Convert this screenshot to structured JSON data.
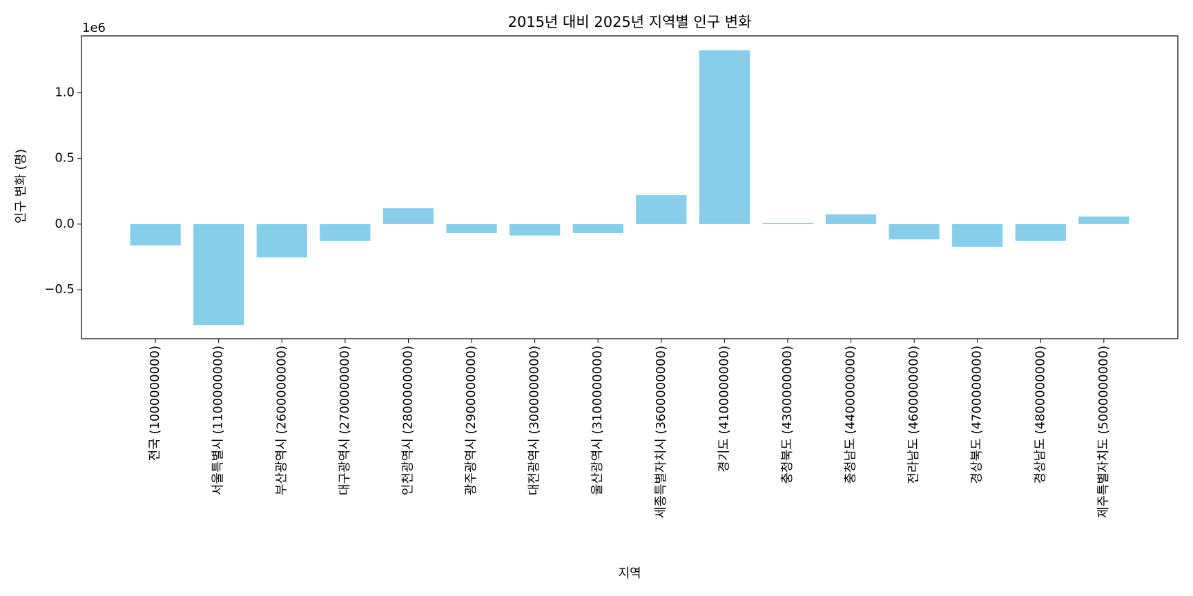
{
  "chart_data": {
    "type": "bar",
    "title": "2015년 대비 2025년 지역별 인구 변화",
    "xlabel": "지역",
    "ylabel": "인구 변화 (명)",
    "y_offset_label": "1e6",
    "categories": [
      "전국 (1000000000)",
      "서울특별시 (1100000000)",
      "부산광역시 (2600000000)",
      "대구광역시 (2700000000)",
      "인천광역시 (2800000000)",
      "광주광역시 (2900000000)",
      "대전광역시 (3000000000)",
      "울산광역시 (3100000000)",
      "세종특별자치시 (3600000000)",
      "경기도 (4100000000)",
      "충청북도 (4300000000)",
      "충청남도 (4400000000)",
      "전라남도 (4600000000)",
      "경상북도 (4700000000)",
      "경상남도 (4800000000)",
      "제주특별자치도 (5000000000)"
    ],
    "values": [
      -162000,
      -769000,
      -254000,
      -127000,
      121000,
      -69000,
      -87000,
      -69000,
      220000,
      1324000,
      10000,
      75000,
      -116000,
      -173000,
      -127000,
      58000
    ],
    "color": "#87ceeb",
    "ylim": [
      -873000,
      1434000
    ],
    "yticks": [
      {
        "value": -500000,
        "label": "−0.5"
      },
      {
        "value": 0,
        "label": "0.0"
      },
      {
        "value": 500000,
        "label": "0.5"
      },
      {
        "value": 1000000,
        "label": "1.0"
      }
    ],
    "grid": false
  }
}
